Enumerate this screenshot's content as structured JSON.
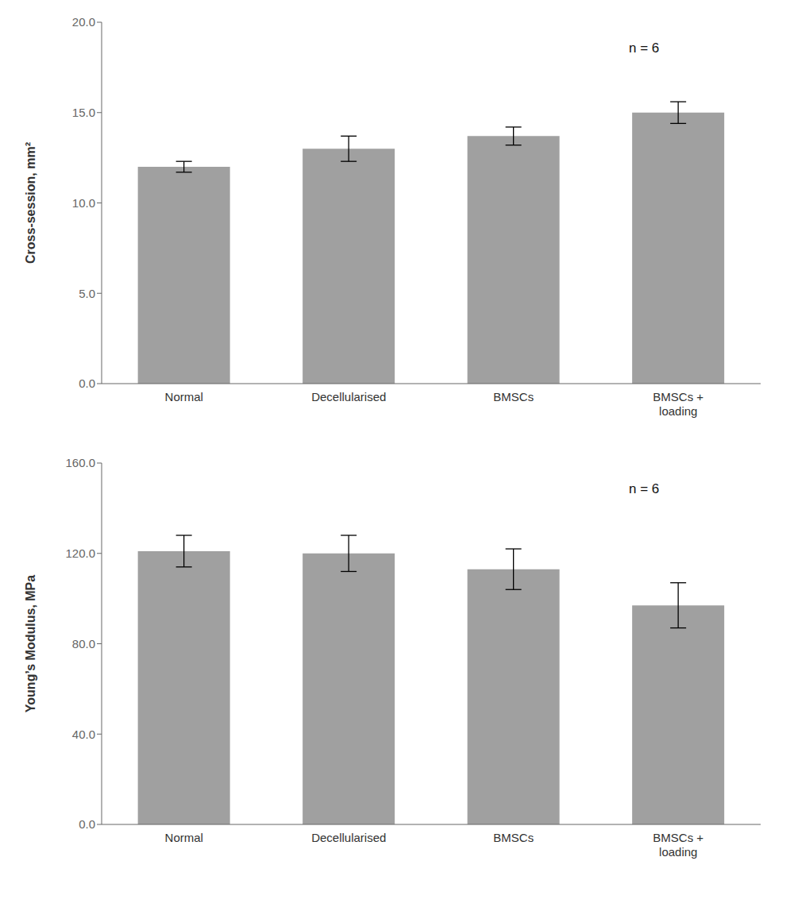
{
  "chart_data": [
    {
      "type": "bar",
      "categories": [
        "Normal",
        "Decellularised",
        "BMSCs",
        "BMSCs +\nloading"
      ],
      "values": [
        12.0,
        13.0,
        13.7,
        15.0
      ],
      "errors": [
        0.3,
        0.7,
        0.5,
        0.6
      ],
      "ylabel": "Cross-session, mm²",
      "ylim": [
        0,
        20.0
      ],
      "yticks": [
        {
          "value": 0.0,
          "label": "0.0"
        },
        {
          "value": 5.0,
          "label": "5.0"
        },
        {
          "value": 10.0,
          "label": "10.0"
        },
        {
          "value": 15.0,
          "label": "15.0"
        },
        {
          "value": 20.0,
          "label": "20.0"
        }
      ],
      "annotation": "n = 6",
      "color": "#a0a0a0",
      "grid": false
    },
    {
      "type": "bar",
      "categories": [
        "Normal",
        "Decellularised",
        "BMSCs",
        "BMSCs +\nloading"
      ],
      "values": [
        121.0,
        120.0,
        113.0,
        97.0
      ],
      "errors": [
        7.0,
        8.0,
        9.0,
        10.0
      ],
      "ylabel": "Young’s Modulus, MPa",
      "ylim": [
        0,
        160.0
      ],
      "yticks": [
        {
          "value": 0.0,
          "label": "0.0"
        },
        {
          "value": 40.0,
          "label": "40.0"
        },
        {
          "value": 80.0,
          "label": "80.0"
        },
        {
          "value": 120.0,
          "label": "120.0"
        },
        {
          "value": 160.0,
          "label": "160.0"
        }
      ],
      "annotation": "n = 6",
      "color": "#a0a0a0",
      "grid": false
    }
  ]
}
